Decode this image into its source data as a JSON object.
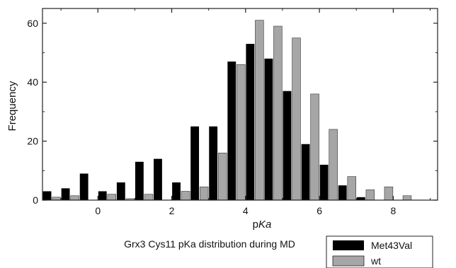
{
  "chart_data": {
    "type": "bar",
    "title": "",
    "caption": "Grx3 Cys11 pKa distribution during MD",
    "xlabel_prefix": "p",
    "xlabel_italic": "Ka",
    "ylabel": "Frequency",
    "xlim": [
      -1.5,
      9.2
    ],
    "ylim": [
      0,
      65
    ],
    "xticks": [
      0,
      2,
      4,
      6,
      8
    ],
    "yticks": [
      0,
      20,
      40,
      60
    ],
    "bin_width": 0.5,
    "grid": false,
    "legend_position": "bottom-right",
    "series": [
      {
        "name": "Met43Val",
        "color": "#000000",
        "bins": [
          -1.5,
          -1.0,
          -0.5,
          0.0,
          0.5,
          1.0,
          1.5,
          2.0,
          2.5,
          3.0,
          3.5,
          4.0,
          4.5,
          5.0,
          5.5,
          6.0,
          6.5,
          7.0
        ],
        "values": [
          3,
          4,
          9,
          3,
          6,
          13,
          14,
          6,
          25,
          25,
          47,
          53,
          48,
          37,
          19,
          12,
          5,
          1
        ]
      },
      {
        "name": "wt",
        "color": "#a6a6a6",
        "bins": [
          -1.5,
          -1.0,
          -0.5,
          0.0,
          0.5,
          1.0,
          1.5,
          2.0,
          2.5,
          3.0,
          3.5,
          4.0,
          4.5,
          5.0,
          5.5,
          6.0,
          6.5,
          7.0,
          7.5,
          8.0
        ],
        "values": [
          1,
          1.5,
          0,
          2,
          0.5,
          2,
          0,
          3,
          4.5,
          16,
          46,
          61,
          59,
          55,
          36,
          24,
          8,
          3.5,
          4.5,
          1.5
        ]
      }
    ]
  }
}
